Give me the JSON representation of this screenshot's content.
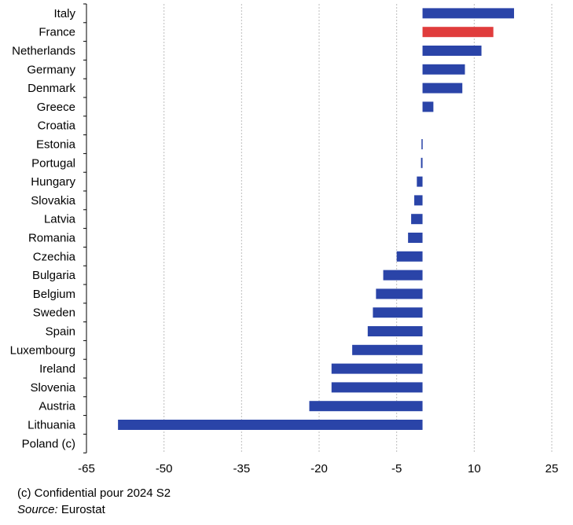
{
  "chart_data": {
    "type": "bar",
    "orientation": "horizontal",
    "categories": [
      "Italy",
      "France",
      "Netherlands",
      "Germany",
      "Denmark",
      "Greece",
      "Croatia",
      "Estonia",
      "Portugal",
      "Hungary",
      "Slovakia",
      "Latvia",
      "Romania",
      "Czechia",
      "Bulgaria",
      "Belgium",
      "Sweden",
      "Spain",
      "Luxembourg",
      "Ireland",
      "Slovenia",
      "Austria",
      "Lithuania",
      "Poland (c)"
    ],
    "values": [
      17.7,
      13.7,
      11.4,
      8.2,
      7.7,
      2.1,
      0,
      -0.2,
      -0.3,
      -1.1,
      -1.6,
      -2.2,
      -2.8,
      -5.0,
      -7.6,
      -9.0,
      -9.6,
      -10.6,
      -13.6,
      -17.6,
      -17.6,
      -21.9,
      -58.9,
      null
    ],
    "highlight": {
      "category": "France",
      "color": "#e03c3c"
    },
    "bar_color": "#2a44a8",
    "xlim": [
      -65,
      25
    ],
    "xticks": [
      -65,
      -50,
      -35,
      -20,
      -5,
      10,
      25
    ],
    "xtick_labels": [
      "-65",
      "-50",
      "-35",
      "-20",
      "-5",
      "10",
      "25"
    ],
    "grid": "vertical-dashed",
    "title": "",
    "xlabel": "",
    "ylabel": ""
  },
  "footnote": "(c) Confidential pour 2024 S2",
  "source_label": "Source:",
  "source_value": " Eurostat"
}
